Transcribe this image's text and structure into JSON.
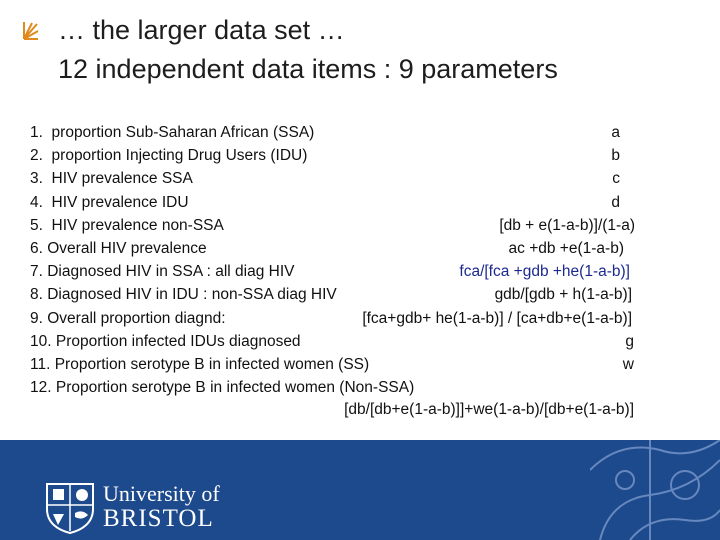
{
  "title": {
    "line1": "… the larger data set …",
    "line2": "12 independent data items : 9 parameters"
  },
  "items": [
    {
      "num": "1.",
      "label": "proportion Sub-Saharan African (SSA)",
      "formula": "a"
    },
    {
      "num": "2.",
      "label": "proportion Injecting Drug Users (IDU)",
      "formula": "b"
    },
    {
      "num": "3.",
      "label": "HIV prevalence SSA",
      "formula": "c"
    },
    {
      "num": "4.",
      "label": "HIV prevalence IDU",
      "formula": "d"
    },
    {
      "num": "5.",
      "label": "HIV prevalence non-SSA",
      "formula": "[db + e(1-a-b)]/(1-a)"
    },
    {
      "num": "6.",
      "label": "Overall HIV prevalence",
      "formula": "ac +db +e(1-a-b)"
    },
    {
      "num": "7.",
      "label": "Diagnosed HIV in SSA : all diag HIV",
      "formula": "fca/[fca +gdb +he(1-a-b)]"
    },
    {
      "num": "8.",
      "label": "Diagnosed HIV in IDU : non-SSA diag HIV",
      "formula": "gdb/[gdb + h(1-a-b)]"
    },
    {
      "num": "9.",
      "label": "Overall proportion diagnd:",
      "formula": "[fca+gdb+ he(1-a-b)] / [ca+db+e(1-a-b)]"
    },
    {
      "num": "10.",
      "label": "Proportion infected IDUs diagnosed",
      "formula": "g"
    },
    {
      "num": "11.",
      "label": "Proportion serotype B in infected women (SS)",
      "formula": "w"
    },
    {
      "num": "12.",
      "label": "Proportion serotype B in infected women (Non-SSA)",
      "formula": ""
    }
  ],
  "item12_formula": "[db/[db+e(1-a-b)]]+we(1-a-b)/[db+e(1-a-b)]",
  "footer": {
    "university_line1": "University of",
    "university_line2": "BRISTOL"
  },
  "colors": {
    "footer_bg": "#1d4a8c",
    "highlight_formula": "#1c2a8f",
    "bullet": "#e08a1e"
  }
}
